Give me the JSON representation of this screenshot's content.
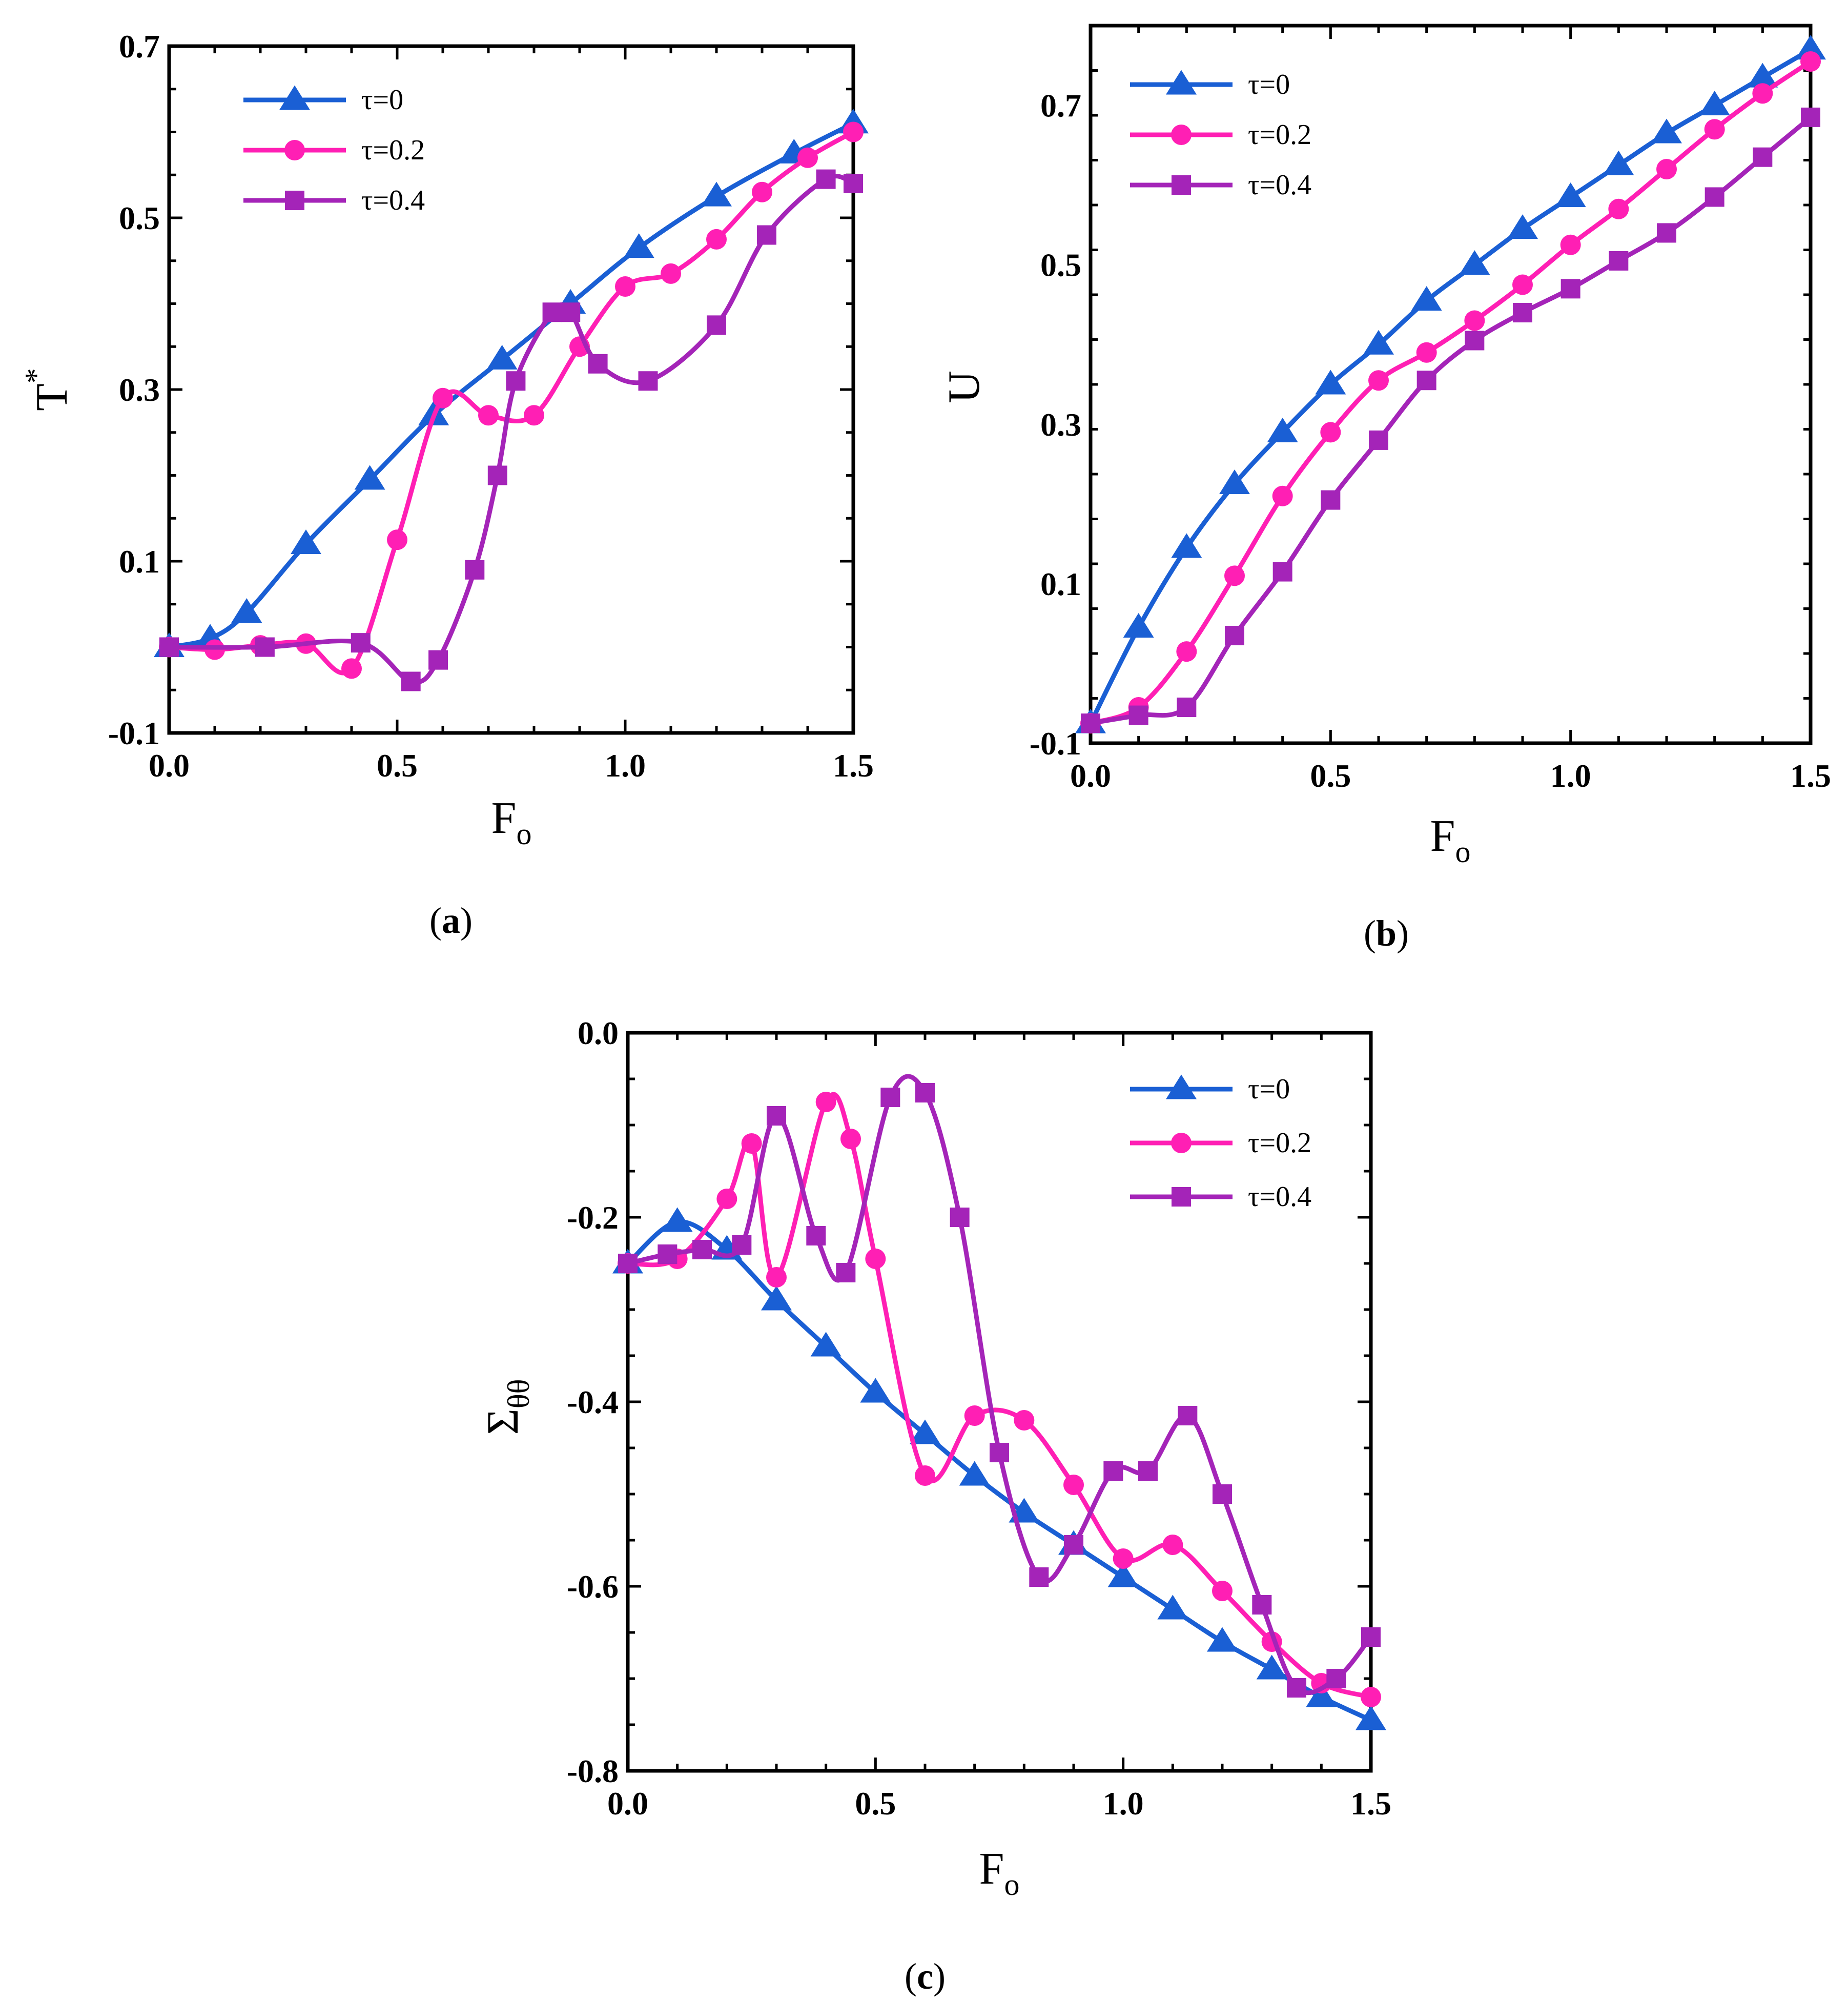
{
  "figure": {
    "captions": [
      "(a)",
      "(b)",
      "(c)"
    ]
  },
  "series_styles": [
    {
      "name": "τ=0",
      "color": "#1a5fd4",
      "marker": "triangle"
    },
    {
      "name": "τ=0.2",
      "color": "#ff1fb4",
      "marker": "circle"
    },
    {
      "name": "τ=0.4",
      "color": "#a424b8",
      "marker": "square"
    }
  ],
  "chart_data": [
    {
      "id": "a",
      "type": "line",
      "caption_letter": "a",
      "ylabel": "T",
      "ylabel_sup": "*",
      "xlabel": "F",
      "xlabel_sub": "o",
      "xlim": [
        0.0,
        1.5
      ],
      "ylim": [
        -0.1,
        0.7
      ],
      "xticks": [
        "0.0",
        "0.5",
        "1.0",
        "1.5"
      ],
      "xtick_values": [
        0.0,
        0.5,
        1.0,
        1.5
      ],
      "yticks": [
        "-0.1",
        "0.1",
        "0.3",
        "0.5",
        "0.7"
      ],
      "ytick_values": [
        -0.1,
        0.1,
        0.3,
        0.5,
        0.7
      ],
      "legend_position": "top-left",
      "series": [
        {
          "name": "τ=0",
          "x": [
            0.0,
            0.09,
            0.17,
            0.3,
            0.44,
            0.58,
            0.73,
            0.88,
            1.03,
            1.2,
            1.37,
            1.5
          ],
          "y": [
            0.0,
            0.01,
            0.04,
            0.12,
            0.195,
            0.27,
            0.335,
            0.4,
            0.465,
            0.525,
            0.575,
            0.61
          ]
        },
        {
          "name": "τ=0.2",
          "x": [
            0.0,
            0.1,
            0.2,
            0.3,
            0.4,
            0.5,
            0.6,
            0.7,
            0.8,
            0.9,
            1.0,
            1.1,
            1.2,
            1.3,
            1.4,
            1.5
          ],
          "y": [
            0.0,
            -0.003,
            0.002,
            0.004,
            -0.025,
            0.125,
            0.29,
            0.27,
            0.27,
            0.35,
            0.42,
            0.435,
            0.475,
            0.53,
            0.57,
            0.6
          ]
        },
        {
          "name": "τ=0.4",
          "x": [
            0.0,
            0.21,
            0.42,
            0.53,
            0.59,
            0.67,
            0.72,
            0.76,
            0.84,
            0.88,
            0.94,
            1.05,
            1.2,
            1.31,
            1.44,
            1.5
          ],
          "y": [
            0.0,
            0.0,
            0.005,
            -0.04,
            -0.015,
            0.09,
            0.2,
            0.31,
            0.39,
            0.39,
            0.33,
            0.31,
            0.375,
            0.48,
            0.545,
            0.54
          ]
        }
      ]
    },
    {
      "id": "b",
      "type": "line",
      "caption_letter": "b",
      "ylabel": "U",
      "xlabel": "F",
      "xlabel_sub": "o",
      "xlim": [
        0.0,
        1.5
      ],
      "ylim": [
        -0.1,
        0.8
      ],
      "xticks": [
        "0.0",
        "0.5",
        "1.0",
        "1.5"
      ],
      "xtick_values": [
        0.0,
        0.5,
        1.0,
        1.5
      ],
      "yticks": [
        "-0.1",
        "0.1",
        "0.3",
        "0.5",
        "0.7"
      ],
      "ytick_values": [
        -0.1,
        0.1,
        0.3,
        0.5,
        0.7
      ],
      "legend_position": "top-left",
      "series": [
        {
          "name": "τ=0",
          "x": [
            0.0,
            0.1,
            0.2,
            0.3,
            0.4,
            0.5,
            0.6,
            0.7,
            0.8,
            0.9,
            1.0,
            1.1,
            1.2,
            1.3,
            1.4,
            1.5
          ],
          "y": [
            -0.075,
            0.045,
            0.145,
            0.225,
            0.29,
            0.35,
            0.4,
            0.455,
            0.5,
            0.545,
            0.585,
            0.625,
            0.665,
            0.7,
            0.735,
            0.77
          ]
        },
        {
          "name": "τ=0.2",
          "x": [
            0.0,
            0.1,
            0.2,
            0.3,
            0.4,
            0.5,
            0.6,
            0.7,
            0.8,
            0.9,
            1.0,
            1.1,
            1.2,
            1.3,
            1.4,
            1.5
          ],
          "y": [
            -0.075,
            -0.055,
            0.015,
            0.11,
            0.21,
            0.29,
            0.355,
            0.39,
            0.43,
            0.475,
            0.525,
            0.57,
            0.62,
            0.67,
            0.715,
            0.755
          ]
        },
        {
          "name": "τ=0.4",
          "x": [
            0.0,
            0.1,
            0.2,
            0.3,
            0.4,
            0.5,
            0.6,
            0.7,
            0.8,
            0.9,
            1.0,
            1.1,
            1.2,
            1.3,
            1.4,
            1.5
          ],
          "y": [
            -0.075,
            -0.065,
            -0.055,
            0.035,
            0.115,
            0.205,
            0.28,
            0.355,
            0.405,
            0.44,
            0.47,
            0.505,
            0.54,
            0.585,
            0.635,
            0.685
          ]
        }
      ]
    },
    {
      "id": "c",
      "type": "line",
      "caption_letter": "c",
      "ylabel": "Σ",
      "ylabel_sub": "θθ",
      "xlabel": "F",
      "xlabel_sub": "o",
      "xlim": [
        0.0,
        1.5
      ],
      "ylim": [
        -0.8,
        0.0
      ],
      "xticks": [
        "0.0",
        "0.5",
        "1.0",
        "1.5"
      ],
      "xtick_values": [
        0.0,
        0.5,
        1.0,
        1.5
      ],
      "yticks": [
        "-0.8",
        "-0.6",
        "-0.4",
        "-0.2",
        "0.0"
      ],
      "ytick_values": [
        -0.8,
        -0.6,
        -0.4,
        -0.2,
        0.0
      ],
      "legend_position": "top-right",
      "series": [
        {
          "name": "τ=0",
          "x": [
            0.0,
            0.1,
            0.2,
            0.3,
            0.4,
            0.5,
            0.6,
            0.7,
            0.8,
            0.9,
            1.0,
            1.1,
            1.2,
            1.3,
            1.4,
            1.5
          ],
          "y": [
            -0.25,
            -0.205,
            -0.235,
            -0.29,
            -0.34,
            -0.39,
            -0.435,
            -0.48,
            -0.52,
            -0.555,
            -0.59,
            -0.625,
            -0.66,
            -0.69,
            -0.72,
            -0.745
          ]
        },
        {
          "name": "τ=0.2",
          "x": [
            0.0,
            0.1,
            0.2,
            0.25,
            0.3,
            0.4,
            0.45,
            0.5,
            0.6,
            0.7,
            0.8,
            0.9,
            1.0,
            1.1,
            1.2,
            1.3,
            1.4,
            1.5
          ],
          "y": [
            -0.25,
            -0.245,
            -0.18,
            -0.12,
            -0.265,
            -0.075,
            -0.115,
            -0.245,
            -0.48,
            -0.415,
            -0.42,
            -0.49,
            -0.57,
            -0.555,
            -0.605,
            -0.66,
            -0.705,
            -0.72
          ]
        },
        {
          "name": "τ=0.4",
          "x": [
            0.0,
            0.08,
            0.15,
            0.23,
            0.3,
            0.38,
            0.44,
            0.53,
            0.6,
            0.67,
            0.75,
            0.83,
            0.9,
            0.98,
            1.05,
            1.13,
            1.2,
            1.28,
            1.35,
            1.43,
            1.5
          ],
          "y": [
            -0.25,
            -0.24,
            -0.235,
            -0.23,
            -0.09,
            -0.22,
            -0.26,
            -0.07,
            -0.065,
            -0.2,
            -0.455,
            -0.59,
            -0.555,
            -0.475,
            -0.475,
            -0.415,
            -0.5,
            -0.62,
            -0.71,
            -0.7,
            -0.655
          ]
        }
      ]
    }
  ]
}
